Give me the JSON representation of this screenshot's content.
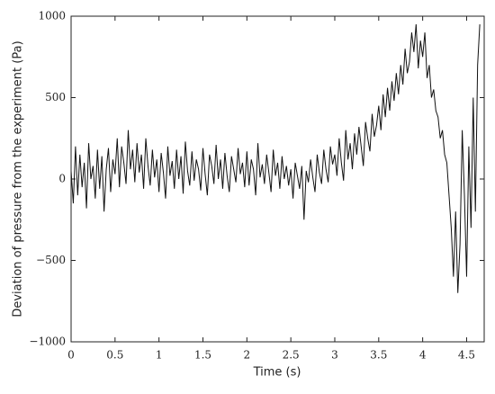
{
  "chart_data": {
    "type": "line",
    "xlabel": "Time (s)",
    "ylabel": "Deviation of pressure from the experiment (Pa)",
    "color": "#111111",
    "xlim": [
      0,
      4.7
    ],
    "ylim": [
      -1000,
      1000
    ],
    "xticks": [
      0,
      0.5,
      1,
      1.5,
      2,
      2.5,
      3,
      3.5,
      4,
      4.5
    ],
    "yticks": [
      {
        "value": -1000,
        "label": "−1000"
      },
      {
        "value": -500,
        "label": "−500"
      },
      0,
      500,
      1000
    ],
    "x": [
      0,
      0.025,
      0.05,
      0.075,
      0.1,
      0.125,
      0.15,
      0.175,
      0.2,
      0.225,
      0.25,
      0.275,
      0.3,
      0.325,
      0.35,
      0.375,
      0.4,
      0.425,
      0.45,
      0.475,
      0.5,
      0.525,
      0.55,
      0.575,
      0.6,
      0.625,
      0.65,
      0.675,
      0.7,
      0.725,
      0.75,
      0.775,
      0.8,
      0.825,
      0.85,
      0.875,
      0.9,
      0.925,
      0.95,
      0.975,
      1,
      1.025,
      1.05,
      1.075,
      1.1,
      1.125,
      1.15,
      1.175,
      1.2,
      1.225,
      1.25,
      1.275,
      1.3,
      1.325,
      1.35,
      1.375,
      1.4,
      1.425,
      1.45,
      1.475,
      1.5,
      1.525,
      1.55,
      1.575,
      1.6,
      1.625,
      1.65,
      1.675,
      1.7,
      1.725,
      1.75,
      1.775,
      1.8,
      1.825,
      1.85,
      1.875,
      1.9,
      1.925,
      1.95,
      1.975,
      2,
      2.025,
      2.05,
      2.075,
      2.1,
      2.125,
      2.15,
      2.175,
      2.2,
      2.225,
      2.25,
      2.275,
      2.3,
      2.325,
      2.35,
      2.375,
      2.4,
      2.425,
      2.45,
      2.475,
      2.5,
      2.525,
      2.55,
      2.575,
      2.6,
      2.625,
      2.65,
      2.675,
      2.7,
      2.725,
      2.75,
      2.775,
      2.8,
      2.825,
      2.85,
      2.875,
      2.9,
      2.925,
      2.95,
      2.975,
      3,
      3.025,
      3.05,
      3.075,
      3.1,
      3.125,
      3.15,
      3.175,
      3.2,
      3.225,
      3.25,
      3.275,
      3.3,
      3.325,
      3.35,
      3.375,
      3.4,
      3.425,
      3.45,
      3.475,
      3.5,
      3.525,
      3.55,
      3.575,
      3.6,
      3.625,
      3.65,
      3.675,
      3.7,
      3.725,
      3.75,
      3.775,
      3.8,
      3.825,
      3.85,
      3.875,
      3.9,
      3.925,
      3.95,
      3.975,
      4,
      4.025,
      4.05,
      4.075,
      4.1,
      4.125,
      4.15,
      4.175,
      4.2,
      4.225,
      4.25,
      4.275,
      4.3,
      4.325,
      4.35,
      4.375,
      4.4,
      4.425,
      4.45,
      4.475,
      4.5,
      4.525,
      4.55,
      4.575,
      4.6,
      4.625,
      4.65
    ],
    "values": [
      50,
      -150,
      200,
      -100,
      150,
      -50,
      100,
      -180,
      220,
      0,
      80,
      -120,
      180,
      -60,
      140,
      -200,
      60,
      190,
      -80,
      120,
      30,
      250,
      -50,
      200,
      100,
      -30,
      300,
      60,
      180,
      -20,
      220,
      40,
      150,
      -60,
      250,
      80,
      -40,
      180,
      10,
      120,
      -80,
      160,
      40,
      -120,
      200,
      20,
      110,
      -60,
      180,
      0,
      140,
      -90,
      230,
      50,
      -40,
      170,
      -10,
      120,
      60,
      -70,
      190,
      30,
      -100,
      150,
      80,
      -30,
      210,
      0,
      120,
      -60,
      160,
      20,
      -80,
      140,
      60,
      -20,
      190,
      30,
      100,
      -50,
      170,
      -40,
      120,
      60,
      -100,
      220,
      10,
      90,
      -30,
      150,
      40,
      -80,
      180,
      20,
      100,
      -60,
      140,
      0,
      80,
      -40,
      60,
      -120,
      100,
      20,
      -60,
      80,
      -250,
      50,
      -20,
      120,
      10,
      -80,
      150,
      40,
      -30,
      180,
      60,
      -20,
      200,
      90,
      150,
      20,
      250,
      100,
      -10,
      300,
      120,
      220,
      60,
      280,
      150,
      320,
      200,
      80,
      350,
      250,
      170,
      400,
      260,
      330,
      450,
      300,
      520,
      380,
      560,
      420,
      600,
      480,
      650,
      520,
      700,
      580,
      800,
      650,
      720,
      900,
      780,
      950,
      680,
      850,
      750,
      900,
      620,
      700,
      500,
      550,
      420,
      380,
      250,
      300,
      150,
      100,
      -100,
      -300,
      -600,
      -200,
      -700,
      -400,
      300,
      -100,
      -600,
      200,
      -300,
      500,
      -200,
      700,
      950
    ]
  }
}
